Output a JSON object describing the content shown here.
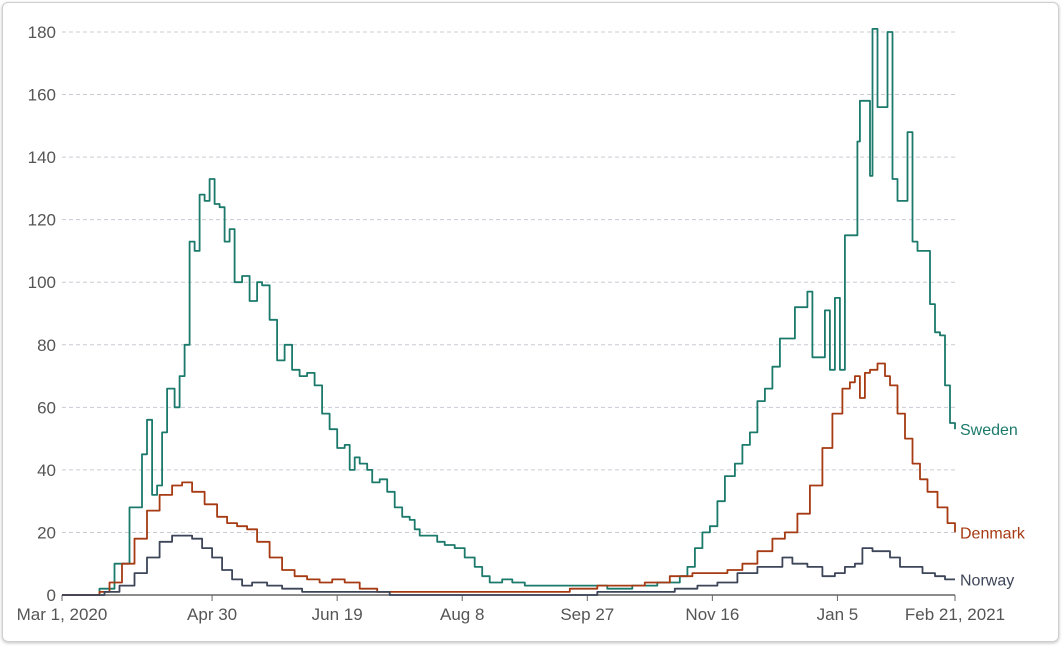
{
  "chart_data": {
    "type": "line",
    "title": "",
    "xlabel": "",
    "ylabel": "",
    "ylim": [
      0,
      180
    ],
    "yticks": [
      0,
      20,
      40,
      60,
      80,
      100,
      120,
      140,
      160,
      180
    ],
    "xlim": [
      "2020-03-01",
      "2021-02-21"
    ],
    "xticks": [
      {
        "date": "2020-03-01",
        "label": "Mar 1, 2020"
      },
      {
        "date": "2020-04-30",
        "label": "Apr 30"
      },
      {
        "date": "2020-06-19",
        "label": "Jun 19"
      },
      {
        "date": "2020-08-08",
        "label": "Aug 8"
      },
      {
        "date": "2020-09-27",
        "label": "Sep 27"
      },
      {
        "date": "2020-11-16",
        "label": "Nov 16"
      },
      {
        "date": "2021-01-05",
        "label": "Jan 5"
      },
      {
        "date": "2021-02-21",
        "label": "Feb 21, 2021"
      }
    ],
    "grid": true,
    "legend": "inline-right",
    "series": [
      {
        "name": "Sweden",
        "color": "#1b7a6b",
        "points": [
          [
            "2020-03-01",
            0
          ],
          [
            "2020-03-10",
            0
          ],
          [
            "2020-03-16",
            2
          ],
          [
            "2020-03-22",
            10
          ],
          [
            "2020-03-28",
            28
          ],
          [
            "2020-04-02",
            45
          ],
          [
            "2020-04-04",
            56
          ],
          [
            "2020-04-06",
            32
          ],
          [
            "2020-04-08",
            35
          ],
          [
            "2020-04-10",
            52
          ],
          [
            "2020-04-12",
            66
          ],
          [
            "2020-04-15",
            60
          ],
          [
            "2020-04-17",
            70
          ],
          [
            "2020-04-19",
            80
          ],
          [
            "2020-04-21",
            113
          ],
          [
            "2020-04-23",
            110
          ],
          [
            "2020-04-25",
            128
          ],
          [
            "2020-04-27",
            126
          ],
          [
            "2020-04-29",
            133
          ],
          [
            "2020-05-01",
            125
          ],
          [
            "2020-05-03",
            124
          ],
          [
            "2020-05-05",
            113
          ],
          [
            "2020-05-07",
            117
          ],
          [
            "2020-05-09",
            100
          ],
          [
            "2020-05-12",
            102
          ],
          [
            "2020-05-15",
            94
          ],
          [
            "2020-05-18",
            100
          ],
          [
            "2020-05-20",
            99
          ],
          [
            "2020-05-23",
            88
          ],
          [
            "2020-05-26",
            75
          ],
          [
            "2020-05-29",
            80
          ],
          [
            "2020-06-01",
            72
          ],
          [
            "2020-06-04",
            70
          ],
          [
            "2020-06-07",
            71
          ],
          [
            "2020-06-10",
            67
          ],
          [
            "2020-06-13",
            58
          ],
          [
            "2020-06-16",
            53
          ],
          [
            "2020-06-19",
            47
          ],
          [
            "2020-06-22",
            48
          ],
          [
            "2020-06-24",
            40
          ],
          [
            "2020-06-26",
            44
          ],
          [
            "2020-06-28",
            42
          ],
          [
            "2020-07-01",
            40
          ],
          [
            "2020-07-03",
            36
          ],
          [
            "2020-07-06",
            37
          ],
          [
            "2020-07-09",
            33
          ],
          [
            "2020-07-12",
            28
          ],
          [
            "2020-07-15",
            25
          ],
          [
            "2020-07-18",
            24
          ],
          [
            "2020-07-20",
            21
          ],
          [
            "2020-07-22",
            19
          ],
          [
            "2020-07-26",
            19
          ],
          [
            "2020-07-29",
            17
          ],
          [
            "2020-08-01",
            16
          ],
          [
            "2020-08-05",
            15
          ],
          [
            "2020-08-09",
            12
          ],
          [
            "2020-08-13",
            9
          ],
          [
            "2020-08-16",
            6
          ],
          [
            "2020-08-19",
            4
          ],
          [
            "2020-08-24",
            5
          ],
          [
            "2020-08-28",
            4
          ],
          [
            "2020-09-02",
            3
          ],
          [
            "2020-09-09",
            3
          ],
          [
            "2020-09-16",
            3
          ],
          [
            "2020-09-23",
            3
          ],
          [
            "2020-09-30",
            3
          ],
          [
            "2020-10-05",
            2
          ],
          [
            "2020-10-10",
            2
          ],
          [
            "2020-10-15",
            3
          ],
          [
            "2020-10-20",
            3
          ],
          [
            "2020-10-25",
            4
          ],
          [
            "2020-10-30",
            4
          ],
          [
            "2020-11-03",
            6
          ],
          [
            "2020-11-06",
            9
          ],
          [
            "2020-11-09",
            15
          ],
          [
            "2020-11-12",
            20
          ],
          [
            "2020-11-15",
            22
          ],
          [
            "2020-11-18",
            30
          ],
          [
            "2020-11-21",
            38
          ],
          [
            "2020-11-25",
            42
          ],
          [
            "2020-11-28",
            48
          ],
          [
            "2020-12-01",
            52
          ],
          [
            "2020-12-04",
            62
          ],
          [
            "2020-12-07",
            66
          ],
          [
            "2020-12-10",
            73
          ],
          [
            "2020-12-13",
            82
          ],
          [
            "2020-12-16",
            82
          ],
          [
            "2020-12-19",
            92
          ],
          [
            "2020-12-22",
            92
          ],
          [
            "2020-12-24",
            97
          ],
          [
            "2020-12-26",
            76
          ],
          [
            "2020-12-29",
            76
          ],
          [
            "2020-12-31",
            91
          ],
          [
            "2021-01-02",
            72
          ],
          [
            "2021-01-04",
            95
          ],
          [
            "2021-01-06",
            72
          ],
          [
            "2021-01-08",
            115
          ],
          [
            "2021-01-11",
            115
          ],
          [
            "2021-01-13",
            145
          ],
          [
            "2021-01-14",
            158
          ],
          [
            "2021-01-16",
            158
          ],
          [
            "2021-01-18",
            134
          ],
          [
            "2021-01-19",
            181
          ],
          [
            "2021-01-21",
            156
          ],
          [
            "2021-01-23",
            156
          ],
          [
            "2021-01-25",
            180
          ],
          [
            "2021-01-27",
            133
          ],
          [
            "2021-01-29",
            126
          ],
          [
            "2021-01-31",
            126
          ],
          [
            "2021-02-02",
            148
          ],
          [
            "2021-02-04",
            113
          ],
          [
            "2021-02-06",
            110
          ],
          [
            "2021-02-09",
            110
          ],
          [
            "2021-02-11",
            93
          ],
          [
            "2021-02-13",
            84
          ],
          [
            "2021-02-15",
            83
          ],
          [
            "2021-02-17",
            67
          ],
          [
            "2021-02-19",
            55
          ],
          [
            "2021-02-21",
            53
          ]
        ]
      },
      {
        "name": "Denmark",
        "color": "#a63a12",
        "points": [
          [
            "2020-03-01",
            0
          ],
          [
            "2020-03-12",
            0
          ],
          [
            "2020-03-16",
            1
          ],
          [
            "2020-03-20",
            4
          ],
          [
            "2020-03-25",
            10
          ],
          [
            "2020-03-30",
            18
          ],
          [
            "2020-04-04",
            27
          ],
          [
            "2020-04-09",
            32
          ],
          [
            "2020-04-14",
            35
          ],
          [
            "2020-04-18",
            36
          ],
          [
            "2020-04-22",
            33
          ],
          [
            "2020-04-27",
            29
          ],
          [
            "2020-05-02",
            25
          ],
          [
            "2020-05-06",
            23
          ],
          [
            "2020-05-10",
            22
          ],
          [
            "2020-05-14",
            21
          ],
          [
            "2020-05-18",
            17
          ],
          [
            "2020-05-23",
            12
          ],
          [
            "2020-05-28",
            8
          ],
          [
            "2020-06-02",
            6
          ],
          [
            "2020-06-07",
            5
          ],
          [
            "2020-06-12",
            4
          ],
          [
            "2020-06-17",
            5
          ],
          [
            "2020-06-22",
            4
          ],
          [
            "2020-06-28",
            2
          ],
          [
            "2020-07-05",
            1
          ],
          [
            "2020-07-15",
            1
          ],
          [
            "2020-08-01",
            1
          ],
          [
            "2020-08-20",
            1
          ],
          [
            "2020-09-05",
            1
          ],
          [
            "2020-09-20",
            2
          ],
          [
            "2020-10-01",
            3
          ],
          [
            "2020-10-10",
            3
          ],
          [
            "2020-10-20",
            4
          ],
          [
            "2020-10-30",
            6
          ],
          [
            "2020-11-08",
            7
          ],
          [
            "2020-11-16",
            7
          ],
          [
            "2020-11-22",
            8
          ],
          [
            "2020-11-28",
            10
          ],
          [
            "2020-12-04",
            14
          ],
          [
            "2020-12-10",
            18
          ],
          [
            "2020-12-15",
            20
          ],
          [
            "2020-12-20",
            26
          ],
          [
            "2020-12-25",
            35
          ],
          [
            "2020-12-30",
            47
          ],
          [
            "2021-01-03",
            58
          ],
          [
            "2021-01-07",
            66
          ],
          [
            "2021-01-10",
            68
          ],
          [
            "2021-01-12",
            70
          ],
          [
            "2021-01-14",
            63
          ],
          [
            "2021-01-16",
            71
          ],
          [
            "2021-01-18",
            72
          ],
          [
            "2021-01-21",
            74
          ],
          [
            "2021-01-24",
            70
          ],
          [
            "2021-01-26",
            67
          ],
          [
            "2021-01-29",
            58
          ],
          [
            "2021-02-01",
            50
          ],
          [
            "2021-02-04",
            42
          ],
          [
            "2021-02-07",
            37
          ],
          [
            "2021-02-10",
            33
          ],
          [
            "2021-02-14",
            28
          ],
          [
            "2021-02-18",
            23
          ],
          [
            "2021-02-21",
            20
          ]
        ]
      },
      {
        "name": "Norway",
        "color": "#3d4559",
        "points": [
          [
            "2020-03-01",
            0
          ],
          [
            "2020-03-12",
            0
          ],
          [
            "2020-03-18",
            1
          ],
          [
            "2020-03-24",
            3
          ],
          [
            "2020-03-30",
            7
          ],
          [
            "2020-04-04",
            12
          ],
          [
            "2020-04-09",
            17
          ],
          [
            "2020-04-14",
            19
          ],
          [
            "2020-04-18",
            19
          ],
          [
            "2020-04-22",
            18
          ],
          [
            "2020-04-26",
            15
          ],
          [
            "2020-04-30",
            12
          ],
          [
            "2020-05-04",
            8
          ],
          [
            "2020-05-08",
            5
          ],
          [
            "2020-05-12",
            3
          ],
          [
            "2020-05-16",
            4
          ],
          [
            "2020-05-22",
            3
          ],
          [
            "2020-05-28",
            2
          ],
          [
            "2020-06-05",
            1
          ],
          [
            "2020-06-20",
            1
          ],
          [
            "2020-07-10",
            0
          ],
          [
            "2020-08-10",
            0
          ],
          [
            "2020-09-10",
            0
          ],
          [
            "2020-10-01",
            1
          ],
          [
            "2020-10-20",
            1
          ],
          [
            "2020-11-01",
            2
          ],
          [
            "2020-11-10",
            3
          ],
          [
            "2020-11-18",
            4
          ],
          [
            "2020-11-26",
            7
          ],
          [
            "2020-12-04",
            9
          ],
          [
            "2020-12-10",
            9
          ],
          [
            "2020-12-14",
            12
          ],
          [
            "2020-12-18",
            10
          ],
          [
            "2020-12-24",
            9
          ],
          [
            "2020-12-30",
            6
          ],
          [
            "2021-01-04",
            7
          ],
          [
            "2021-01-08",
            9
          ],
          [
            "2021-01-12",
            10
          ],
          [
            "2021-01-15",
            15
          ],
          [
            "2021-01-19",
            14
          ],
          [
            "2021-01-23",
            14
          ],
          [
            "2021-01-26",
            12
          ],
          [
            "2021-01-30",
            9
          ],
          [
            "2021-02-04",
            9
          ],
          [
            "2021-02-08",
            7
          ],
          [
            "2021-02-13",
            6
          ],
          [
            "2021-02-17",
            5
          ],
          [
            "2021-02-21",
            5
          ]
        ]
      }
    ]
  }
}
